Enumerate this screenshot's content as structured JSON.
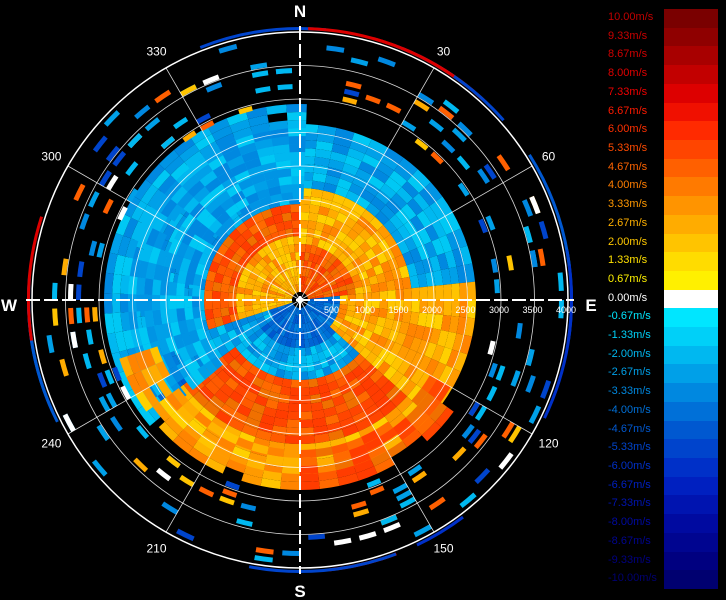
{
  "radar": {
    "cardinals": {
      "n": "N",
      "e": "E",
      "s": "S",
      "w": "W"
    },
    "azimuth_labels": [
      {
        "deg": 30,
        "text": "30"
      },
      {
        "deg": 60,
        "text": "60"
      },
      {
        "deg": 120,
        "text": "120"
      },
      {
        "deg": 150,
        "text": "150"
      },
      {
        "deg": 210,
        "text": "210"
      },
      {
        "deg": 240,
        "text": "240"
      },
      {
        "deg": 300,
        "text": "300"
      },
      {
        "deg": 330,
        "text": "330"
      }
    ],
    "range_labels": [
      "500",
      "1000",
      "1500",
      "2000",
      "2500",
      "3000",
      "3500",
      "4000"
    ],
    "grid_color": "#ffffff",
    "axis_color": "#ffffff"
  },
  "scale": {
    "items": [
      {
        "label": "10.00m/s",
        "color": "#7a0000",
        "label_color": "#c00000"
      },
      {
        "label": "9.33m/s",
        "color": "#8f0000",
        "label_color": "#c80000"
      },
      {
        "label": "8.67m/s",
        "color": "#a80000",
        "label_color": "#d00000"
      },
      {
        "label": "8.00m/s",
        "color": "#c20000",
        "label_color": "#e00000"
      },
      {
        "label": "7.33m/s",
        "color": "#dd0000",
        "label_color": "#f00000"
      },
      {
        "label": "6.67m/s",
        "color": "#f01000",
        "label_color": "#ff1a00"
      },
      {
        "label": "6.00m/s",
        "color": "#ff2a00",
        "label_color": "#ff3000"
      },
      {
        "label": "5.33m/s",
        "color": "#ff4500",
        "label_color": "#ff4a00"
      },
      {
        "label": "4.67m/s",
        "color": "#ff6000",
        "label_color": "#ff6400"
      },
      {
        "label": "4.00m/s",
        "color": "#ff7a00",
        "label_color": "#ff7e00"
      },
      {
        "label": "3.33m/s",
        "color": "#ff9400",
        "label_color": "#ff9800"
      },
      {
        "label": "2.67m/s",
        "color": "#ffac00",
        "label_color": "#ffb000"
      },
      {
        "label": "2.00m/s",
        "color": "#ffc400",
        "label_color": "#ffc800"
      },
      {
        "label": "1.33m/s",
        "color": "#ffdc00",
        "label_color": "#ffe000"
      },
      {
        "label": "0.67m/s",
        "color": "#fff000",
        "label_color": "#fff200"
      },
      {
        "label": "0.00m/s",
        "color": "#ffffff",
        "label_color": "#ffffff"
      },
      {
        "label": "-0.67m/s",
        "color": "#00e6ff",
        "label_color": "#00e6ff"
      },
      {
        "label": "-1.33m/s",
        "color": "#00d0f8",
        "label_color": "#00d0f8"
      },
      {
        "label": "-2.00m/s",
        "color": "#00b8f0",
        "label_color": "#00b8f0"
      },
      {
        "label": "-2.67m/s",
        "color": "#00a0e8",
        "label_color": "#00a0e8"
      },
      {
        "label": "-3.33m/s",
        "color": "#0088e0",
        "label_color": "#0088e0"
      },
      {
        "label": "-4.00m/s",
        "color": "#0070d8",
        "label_color": "#0070d8"
      },
      {
        "label": "-4.67m/s",
        "color": "#0058d0",
        "label_color": "#0058d0"
      },
      {
        "label": "-5.33m/s",
        "color": "#0044cc",
        "label_color": "#0044cc"
      },
      {
        "label": "-6.00m/s",
        "color": "#0030c8",
        "label_color": "#0030c8"
      },
      {
        "label": "-6.67m/s",
        "color": "#0020c0",
        "label_color": "#0020c0"
      },
      {
        "label": "-7.33m/s",
        "color": "#0014b0",
        "label_color": "#0014b0"
      },
      {
        "label": "-8.00m/s",
        "color": "#000aa0",
        "label_color": "#000aa0"
      },
      {
        "label": "-8.67m/s",
        "color": "#000590",
        "label_color": "#000590"
      },
      {
        "label": "-9.33m/s",
        "color": "#000080",
        "label_color": "#000080"
      },
      {
        "label": "-10.00m/s",
        "color": "#000070",
        "label_color": "#000070"
      }
    ]
  }
}
